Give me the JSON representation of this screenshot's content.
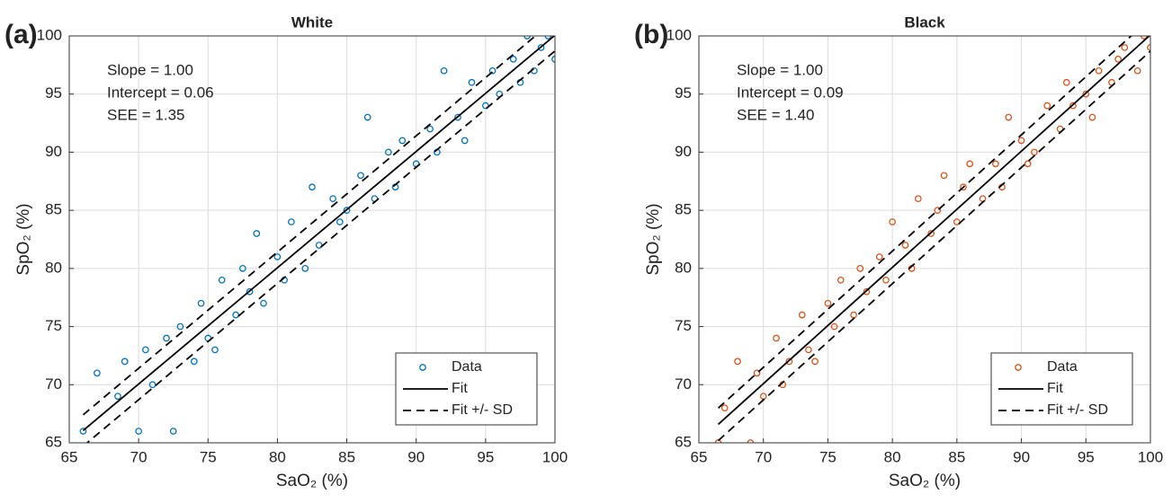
{
  "chart_data": [
    {
      "type": "scatter",
      "panel_label": "(a)",
      "title": "White",
      "xlabel": "SaO₂ (%)",
      "ylabel": "SpO₂ (%)",
      "annotations": [
        "Slope = 1.00",
        "Intercept = 0.06",
        "SEE = 1.35"
      ],
      "xlim": [
        65,
        100
      ],
      "ylim": [
        65,
        100
      ],
      "xticks": [
        65,
        70,
        75,
        80,
        85,
        90,
        95,
        100
      ],
      "yticks": [
        65,
        70,
        75,
        80,
        85,
        90,
        95,
        100
      ],
      "grid": true,
      "legend": "lower right",
      "series": [
        {
          "name": "Data",
          "style": "markers",
          "color": "#0072bd",
          "x": [
            66,
            67,
            68.5,
            69,
            70,
            70.5,
            71,
            72,
            72.5,
            73,
            74,
            74.5,
            75,
            75.5,
            76,
            77,
            77.5,
            78,
            78.5,
            79,
            80,
            80.5,
            81,
            82,
            82.5,
            83,
            84,
            84.5,
            85,
            86,
            86.5,
            87,
            88,
            88.5,
            89,
            90,
            91,
            91.5,
            92,
            93,
            93.5,
            94,
            95,
            95.5,
            96,
            97,
            97.5,
            98,
            98.5,
            99,
            99.5,
            100
          ],
          "y": [
            66,
            71,
            69,
            72,
            66,
            73,
            70,
            74,
            66,
            75,
            72,
            77,
            74,
            73,
            79,
            76,
            80,
            78,
            83,
            77,
            81,
            79,
            84,
            80,
            87,
            82,
            86,
            84,
            85,
            88,
            93,
            86,
            90,
            87,
            91,
            89,
            92,
            90,
            97,
            93,
            91,
            96,
            94,
            97,
            95,
            98,
            96,
            100,
            97,
            99,
            100,
            98
          ]
        },
        {
          "name": "Fit",
          "style": "solid",
          "color": "#000000",
          "x": [
            66,
            100
          ],
          "y": [
            66.06,
            100.06
          ]
        },
        {
          "name": "Fit +/- SD",
          "style": "dashed",
          "color": "#000000",
          "x": [
            66,
            100,
            null,
            66,
            100
          ],
          "y": [
            67.41,
            101.41,
            null,
            64.71,
            98.71
          ]
        }
      ]
    },
    {
      "type": "scatter",
      "panel_label": "(b)",
      "title": "Black",
      "xlabel": "SaO₂ (%)",
      "ylabel": "SpO₂ (%)",
      "annotations": [
        "Slope = 1.00",
        "Intercept = 0.09",
        "SEE = 1.40"
      ],
      "xlim": [
        65,
        100
      ],
      "ylim": [
        65,
        100
      ],
      "xticks": [
        65,
        70,
        75,
        80,
        85,
        90,
        95,
        100
      ],
      "yticks": [
        65,
        70,
        75,
        80,
        85,
        90,
        95,
        100
      ],
      "grid": true,
      "legend": "lower right",
      "series": [
        {
          "name": "Data",
          "style": "markers",
          "color": "#d95319",
          "x": [
            66.5,
            67,
            68,
            69,
            69.5,
            70,
            71,
            71.5,
            72,
            73,
            73.5,
            74,
            75,
            75.5,
            76,
            77,
            77.5,
            78,
            79,
            79.5,
            80,
            81,
            81.5,
            82,
            83,
            83.5,
            84,
            85,
            85.5,
            86,
            87,
            88,
            88.5,
            89,
            90,
            90.5,
            91,
            92,
            93,
            93.5,
            94,
            95,
            95.5,
            96,
            97,
            97.5,
            98,
            99,
            99.5,
            100
          ],
          "y": [
            65,
            68,
            72,
            65,
            71,
            69,
            74,
            70,
            72,
            76,
            73,
            72,
            77,
            75,
            79,
            76,
            80,
            78,
            81,
            79,
            84,
            82,
            80,
            86,
            83,
            85,
            88,
            84,
            87,
            89,
            86,
            89,
            87,
            93,
            91,
            89,
            90,
            94,
            92,
            96,
            94,
            95,
            93,
            97,
            96,
            98,
            99,
            97,
            100,
            99
          ]
        },
        {
          "name": "Fit",
          "style": "solid",
          "color": "#000000",
          "x": [
            66.5,
            100
          ],
          "y": [
            66.59,
            100.09
          ]
        },
        {
          "name": "Fit +/- SD",
          "style": "dashed",
          "color": "#000000",
          "x": [
            66.5,
            100,
            null,
            66.5,
            100
          ],
          "y": [
            67.99,
            101.49,
            null,
            65.19,
            98.69
          ]
        }
      ]
    }
  ]
}
